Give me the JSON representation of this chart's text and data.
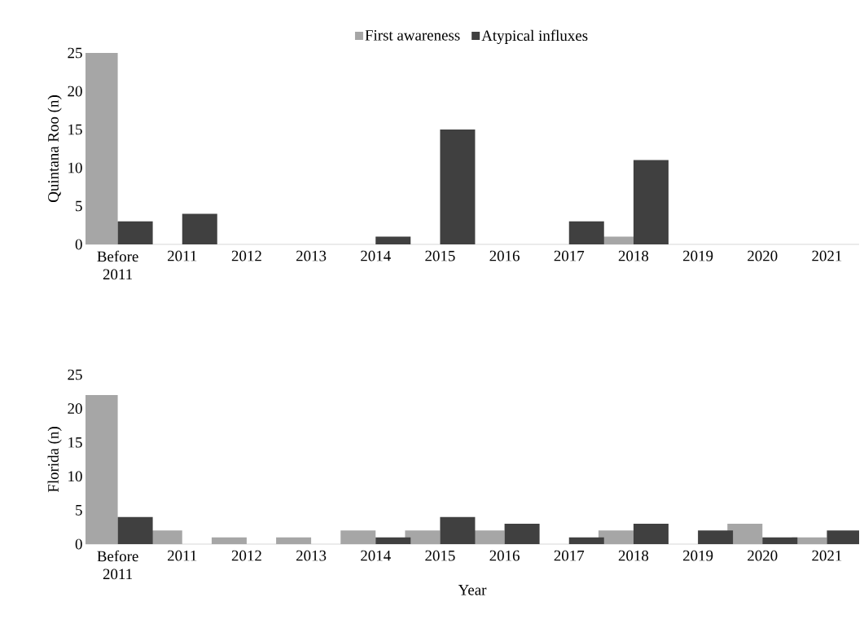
{
  "chart_data": [
    {
      "type": "bar",
      "ylabel": "Quintana Roo (n)",
      "categories": [
        "Before 2011",
        "2011",
        "2012",
        "2013",
        "2014",
        "2015",
        "2016",
        "2017",
        "2018",
        "2019",
        "2020",
        "2021"
      ],
      "series": [
        {
          "name": "First awareness",
          "color": "#a6a6a6",
          "values": [
            25,
            0,
            0,
            0,
            0,
            0,
            0,
            0,
            1,
            0,
            0,
            0
          ]
        },
        {
          "name": "Atypical influxes",
          "color": "#404040",
          "values": [
            3,
            4,
            0,
            0,
            1,
            15,
            0,
            3,
            11,
            0,
            0,
            0
          ]
        }
      ],
      "ylim": [
        0,
        25
      ],
      "yticks": [
        0,
        5,
        10,
        15,
        20,
        25
      ],
      "legend": "top"
    },
    {
      "type": "bar",
      "ylabel": "Florida (n)",
      "xlabel": "Year",
      "categories": [
        "Before 2011",
        "2011",
        "2012",
        "2013",
        "2014",
        "2015",
        "2016",
        "2017",
        "2018",
        "2019",
        "2020",
        "2021"
      ],
      "series": [
        {
          "color": "#a6a6a6",
          "values": [
            22,
            2,
            1,
            1,
            2,
            2,
            2,
            0,
            2,
            0,
            3,
            1
          ]
        },
        {
          "color": "#404040",
          "values": [
            4,
            0,
            0,
            0,
            1,
            4,
            3,
            1,
            3,
            2,
            1,
            2
          ]
        }
      ],
      "ylim": [
        0,
        25
      ],
      "yticks": [
        0,
        5,
        10,
        15,
        20,
        25
      ]
    }
  ]
}
